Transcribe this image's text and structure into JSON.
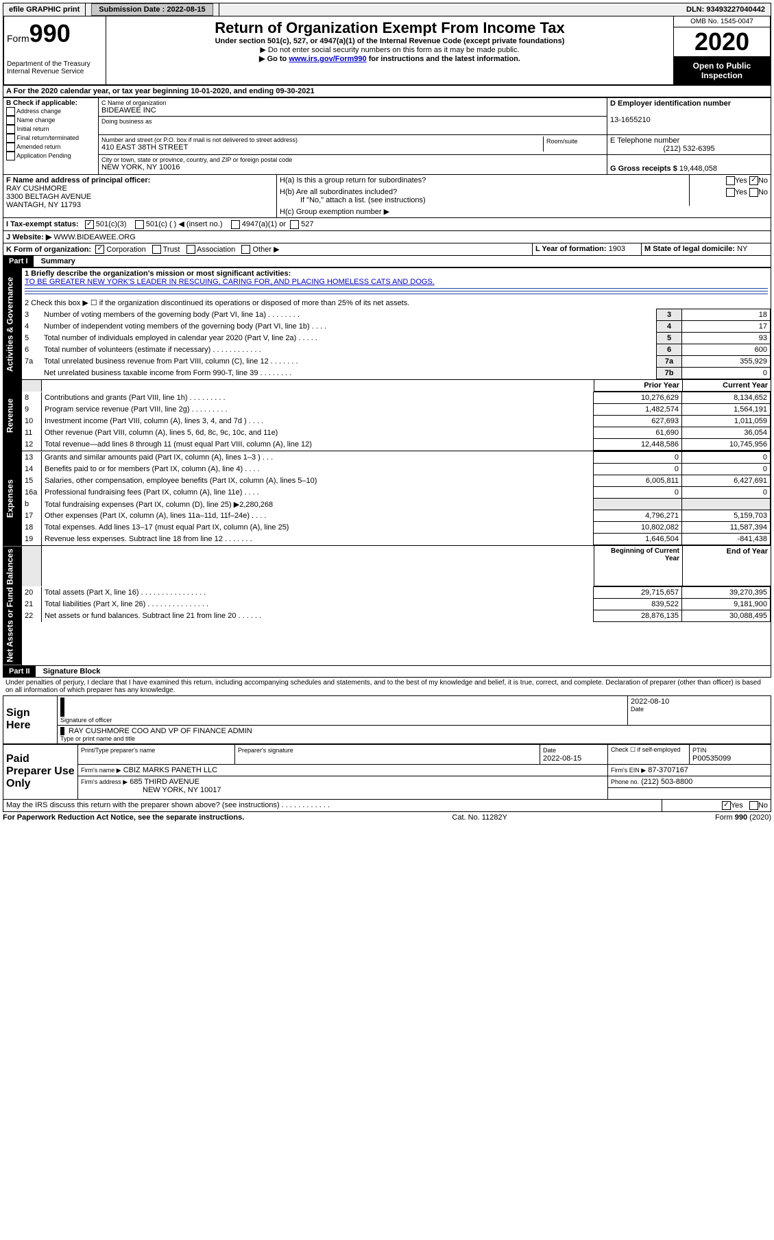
{
  "top_bar": {
    "efile": "efile GRAPHIC print",
    "submission_label": "Submission Date :",
    "submission_date": "2022-08-15",
    "dln_label": "DLN:",
    "dln": "93493227040442"
  },
  "header": {
    "form_word": "Form",
    "form_num": "990",
    "dept": "Department of the Treasury",
    "irs": "Internal Revenue Service",
    "title": "Return of Organization Exempt From Income Tax",
    "subtitle": "Under section 501(c), 527, or 4947(a)(1) of the Internal Revenue Code (except private foundations)",
    "note1": "▶ Do not enter social security numbers on this form as it may be made public.",
    "note2_pre": "▶ Go to ",
    "note2_link": "www.irs.gov/Form990",
    "note2_post": " for instructions and the latest information.",
    "omb": "OMB No. 1545-0047",
    "year": "2020",
    "open": "Open to Public Inspection"
  },
  "period": {
    "label_a": "A For the 2020 calendar year, or tax year beginning ",
    "begin": "10-01-2020",
    "label_mid": ", and ending ",
    "end": "09-30-2021"
  },
  "boxB": {
    "label": "B Check if applicable:",
    "opt1": "Address change",
    "opt2": "Name change",
    "opt3": "Initial return",
    "opt4": "Final return/terminated",
    "opt5": "Amended return",
    "opt6": "Application Pending"
  },
  "boxC": {
    "name_label": "C Name of organization",
    "name": "BIDEAWEE INC",
    "dba_label": "Doing business as",
    "street_label": "Number and street (or P.O. box if mail is not delivered to street address)",
    "street": "410 EAST 38TH STREET",
    "room_label": "Room/suite",
    "city_label": "City or town, state or province, country, and ZIP or foreign postal code",
    "city": "NEW YORK, NY  10016"
  },
  "boxD": {
    "label": "D Employer identification number",
    "ein": "13-1655210"
  },
  "boxE": {
    "label": "E Telephone number",
    "phone": "(212) 532-6395"
  },
  "boxG": {
    "label": "G Gross receipts $",
    "amount": "19,448,058"
  },
  "boxF": {
    "label": "F Name and address of principal officer:",
    "name": "RAY CUSHMORE",
    "addr1": "3300 BELTAGH AVENUE",
    "addr2": "WANTAGH, NY  11793"
  },
  "boxH": {
    "ha_label": "H(a)  Is this a group return for subordinates?",
    "hb_label": "H(b)  Are all subordinates included?",
    "hb_note": "If \"No,\" attach a list. (see instructions)",
    "hc_label": "H(c)  Group exemption number ▶",
    "yes": "Yes",
    "no": "No"
  },
  "boxI": {
    "label": "I  Tax-exempt status:",
    "o1": "501(c)(3)",
    "o2": "501(c) (   ) ◀ (insert no.)",
    "o3": "4947(a)(1) or",
    "o4": "527"
  },
  "boxJ": {
    "label": "J  Website: ▶",
    "url": "WWW.BIDEAWEE.ORG"
  },
  "boxK": {
    "label": "K Form of organization:",
    "o1": "Corporation",
    "o2": "Trust",
    "o3": "Association",
    "o4": "Other ▶"
  },
  "boxL": {
    "label": "L Year of formation:",
    "val": "1903"
  },
  "boxM": {
    "label": "M State of legal domicile:",
    "val": "NY"
  },
  "part1": {
    "header": "Part I",
    "title": "Summary",
    "sections": {
      "gov": "Activities & Governance",
      "rev": "Revenue",
      "exp": "Expenses",
      "net": "Net Assets or Fund Balances"
    },
    "line1_label": "1  Briefly describe the organization's mission or most significant activities:",
    "line1_text": "TO BE GREATER NEW YORK'S LEADER IN RESCUING, CARING FOR, AND PLACING HOMELESS CATS AND DOGS.",
    "line2": "2  Check this box ▶ ☐  if the organization discontinued its operations or disposed of more than 25% of its net assets.",
    "rows_gov": [
      {
        "n": "3",
        "label": "Number of voting members of the governing body (Part VI, line 1a)   .   .   .   .   .   .   .   .",
        "box": "3",
        "val": "18"
      },
      {
        "n": "4",
        "label": "Number of independent voting members of the governing body (Part VI, line 1b)   .   .   .   .",
        "box": "4",
        "val": "17"
      },
      {
        "n": "5",
        "label": "Total number of individuals employed in calendar year 2020 (Part V, line 2a)   .   .   .   .   .",
        "box": "5",
        "val": "93"
      },
      {
        "n": "6",
        "label": "Total number of volunteers (estimate if necessary)   .   .   .   .   .   .   .   .   .   .   .   .",
        "box": "6",
        "val": "600"
      },
      {
        "n": "7a",
        "label": "Total unrelated business revenue from Part VIII, column (C), line 12   .   .   .   .   .   .   .",
        "box": "7a",
        "val": "355,929"
      },
      {
        "n": "",
        "label": "Net unrelated business taxable income from Form 990-T, line 39   .   .   .   .   .   .   .   .",
        "box": "7b",
        "val": "0"
      }
    ],
    "col_prior": "Prior Year",
    "col_current": "Current Year",
    "rows_rev": [
      {
        "n": "8",
        "label": "Contributions and grants (Part VIII, line 1h)   .   .   .   .   .   .   .   .   .",
        "p": "10,276,629",
        "c": "8,134,652"
      },
      {
        "n": "9",
        "label": "Program service revenue (Part VIII, line 2g)   .   .   .   .   .   .   .   .   .",
        "p": "1,482,574",
        "c": "1,564,191"
      },
      {
        "n": "10",
        "label": "Investment income (Part VIII, column (A), lines 3, 4, and 7d )   .   .   .   .",
        "p": "627,693",
        "c": "1,011,059"
      },
      {
        "n": "11",
        "label": "Other revenue (Part VIII, column (A), lines 5, 6d, 8c, 9c, 10c, and 11e)",
        "p": "61,690",
        "c": "36,054"
      },
      {
        "n": "12",
        "label": "Total revenue—add lines 8 through 11 (must equal Part VIII, column (A), line 12)",
        "p": "12,448,586",
        "c": "10,745,956"
      }
    ],
    "rows_exp": [
      {
        "n": "13",
        "label": "Grants and similar amounts paid (Part IX, column (A), lines 1–3 )   .   .   .",
        "p": "0",
        "c": "0"
      },
      {
        "n": "14",
        "label": "Benefits paid to or for members (Part IX, column (A), line 4)   .   .   .   .",
        "p": "0",
        "c": "0"
      },
      {
        "n": "15",
        "label": "Salaries, other compensation, employee benefits (Part IX, column (A), lines 5–10)",
        "p": "6,005,811",
        "c": "6,427,691"
      },
      {
        "n": "16a",
        "label": "Professional fundraising fees (Part IX, column (A), line 11e)   .   .   .   .",
        "p": "0",
        "c": "0"
      },
      {
        "n": "b",
        "label": "Total fundraising expenses (Part IX, column (D), line 25) ▶2,280,268",
        "p": "",
        "c": ""
      },
      {
        "n": "17",
        "label": "Other expenses (Part IX, column (A), lines 11a–11d, 11f–24e)   .   .   .   .",
        "p": "4,796,271",
        "c": "5,159,703"
      },
      {
        "n": "18",
        "label": "Total expenses. Add lines 13–17 (must equal Part IX, column (A), line 25)",
        "p": "10,802,082",
        "c": "11,587,394"
      },
      {
        "n": "19",
        "label": "Revenue less expenses. Subtract line 18 from line 12   .   .   .   .   .   .   .",
        "p": "1,646,504",
        "c": "-841,438"
      }
    ],
    "col_begin": "Beginning of Current Year",
    "col_end": "End of Year",
    "rows_net": [
      {
        "n": "20",
        "label": "Total assets (Part X, line 16)   .   .   .   .   .   .   .   .   .   .   .   .   .   .   .   .",
        "p": "29,715,657",
        "c": "39,270,395"
      },
      {
        "n": "21",
        "label": "Total liabilities (Part X, line 26)   .   .   .   .   .   .   .   .   .   .   .   .   .   .   .",
        "p": "839,522",
        "c": "9,181,900"
      },
      {
        "n": "22",
        "label": "Net assets or fund balances. Subtract line 21 from line 20   .   .   .   .   .   .",
        "p": "28,876,135",
        "c": "30,088,495"
      }
    ]
  },
  "part2": {
    "header": "Part II",
    "title": "Signature Block",
    "declaration": "Under penalties of perjury, I declare that I have examined this return, including accompanying schedules and statements, and to the best of my knowledge and belief, it is true, correct, and complete. Declaration of preparer (other than officer) is based on all information of which preparer has any knowledge.",
    "sign_here": "Sign Here",
    "sig_officer": "Signature of officer",
    "date_label": "Date",
    "sig_date": "2022-08-10",
    "sig_name": "RAY CUSHMORE COO AND VP OF FINANCE ADMIN",
    "sig_type": "Type or print name and title",
    "paid": "Paid Preparer Use Only",
    "prep_name_label": "Print/Type preparer's name",
    "prep_sig_label": "Preparer's signature",
    "prep_date_label": "Date",
    "prep_date": "2022-08-15",
    "prep_check_label": "Check ☐ if self-employed",
    "ptin_label": "PTIN",
    "ptin": "P00535099",
    "firm_name_label": "Firm's name      ▶",
    "firm_name": "CBIZ MARKS PANETH LLC",
    "firm_ein_label": "Firm's EIN ▶",
    "firm_ein": "87-3707167",
    "firm_addr_label": "Firm's address ▶",
    "firm_addr1": "685 THIRD AVENUE",
    "firm_addr2": "NEW YORK, NY  10017",
    "firm_phone_label": "Phone no.",
    "firm_phone": "(212) 503-8800",
    "discuss": "May the IRS discuss this return with the preparer shown above? (see instructions)   .   .   .   .   .   .   .   .   .   .   .   ."
  },
  "footer": {
    "left": "For Paperwork Reduction Act Notice, see the separate instructions.",
    "mid": "Cat. No. 11282Y",
    "right": "Form 990 (2020)"
  }
}
